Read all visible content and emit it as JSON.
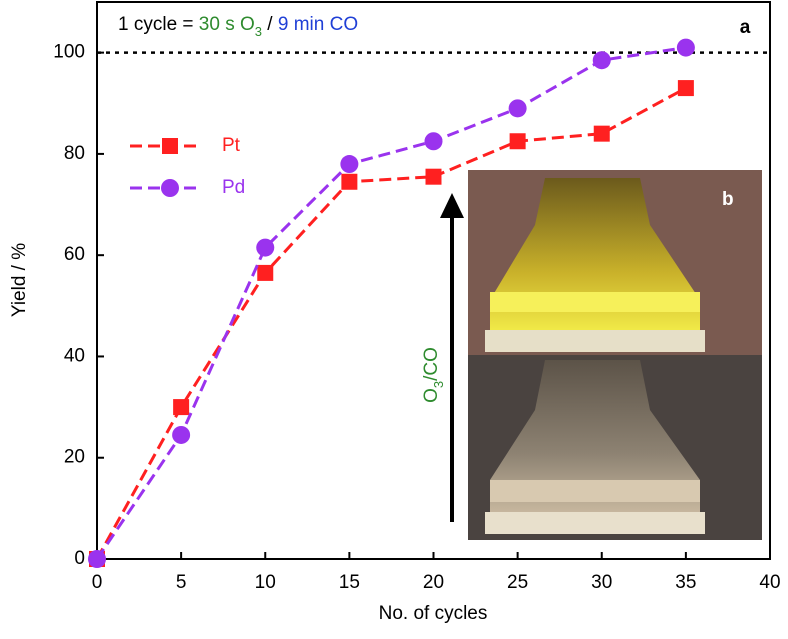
{
  "chart_data": {
    "type": "line",
    "x": [
      0,
      5,
      10,
      15,
      20,
      25,
      30,
      35
    ],
    "series": [
      {
        "name": "Pt",
        "color": "#ff2020",
        "marker": "square",
        "values": [
          0,
          30,
          56.5,
          74.5,
          75.5,
          82.5,
          84,
          93
        ]
      },
      {
        "name": "Pd",
        "color": "#9a33ee",
        "marker": "circle",
        "values": [
          0,
          24.5,
          61.5,
          78,
          82.5,
          89,
          98.5,
          101
        ]
      }
    ],
    "xlim": [
      0,
      40
    ],
    "xticks": [
      0,
      5,
      10,
      15,
      20,
      25,
      30,
      35,
      40
    ],
    "ylim": [
      0,
      110
    ],
    "yticks": [
      0,
      20,
      40,
      60,
      80,
      100
    ],
    "x_label": "No. of cycles",
    "y_label": "Yield / %",
    "reference_line": 100,
    "legend": "upper left",
    "title_parts": [
      {
        "text": "1 cycle = ",
        "color": "#000000"
      },
      {
        "text": "30 s O",
        "color": "#2e8b2e"
      },
      {
        "text": "3",
        "color": "#2e8b2e",
        "subscript": true
      },
      {
        "text": " / ",
        "color": "#000000"
      },
      {
        "text": "9 min CO",
        "color": "#1f3fd6"
      }
    ],
    "arrow_label_parts": [
      {
        "text": "O",
        "color": "#2e8b2e"
      },
      {
        "text": "3",
        "color": "#2e8b2e",
        "subscript": true
      },
      {
        "text": "/CO",
        "color": "#2e8b2e"
      }
    ],
    "panel_label": "a",
    "inset_label": "b"
  }
}
